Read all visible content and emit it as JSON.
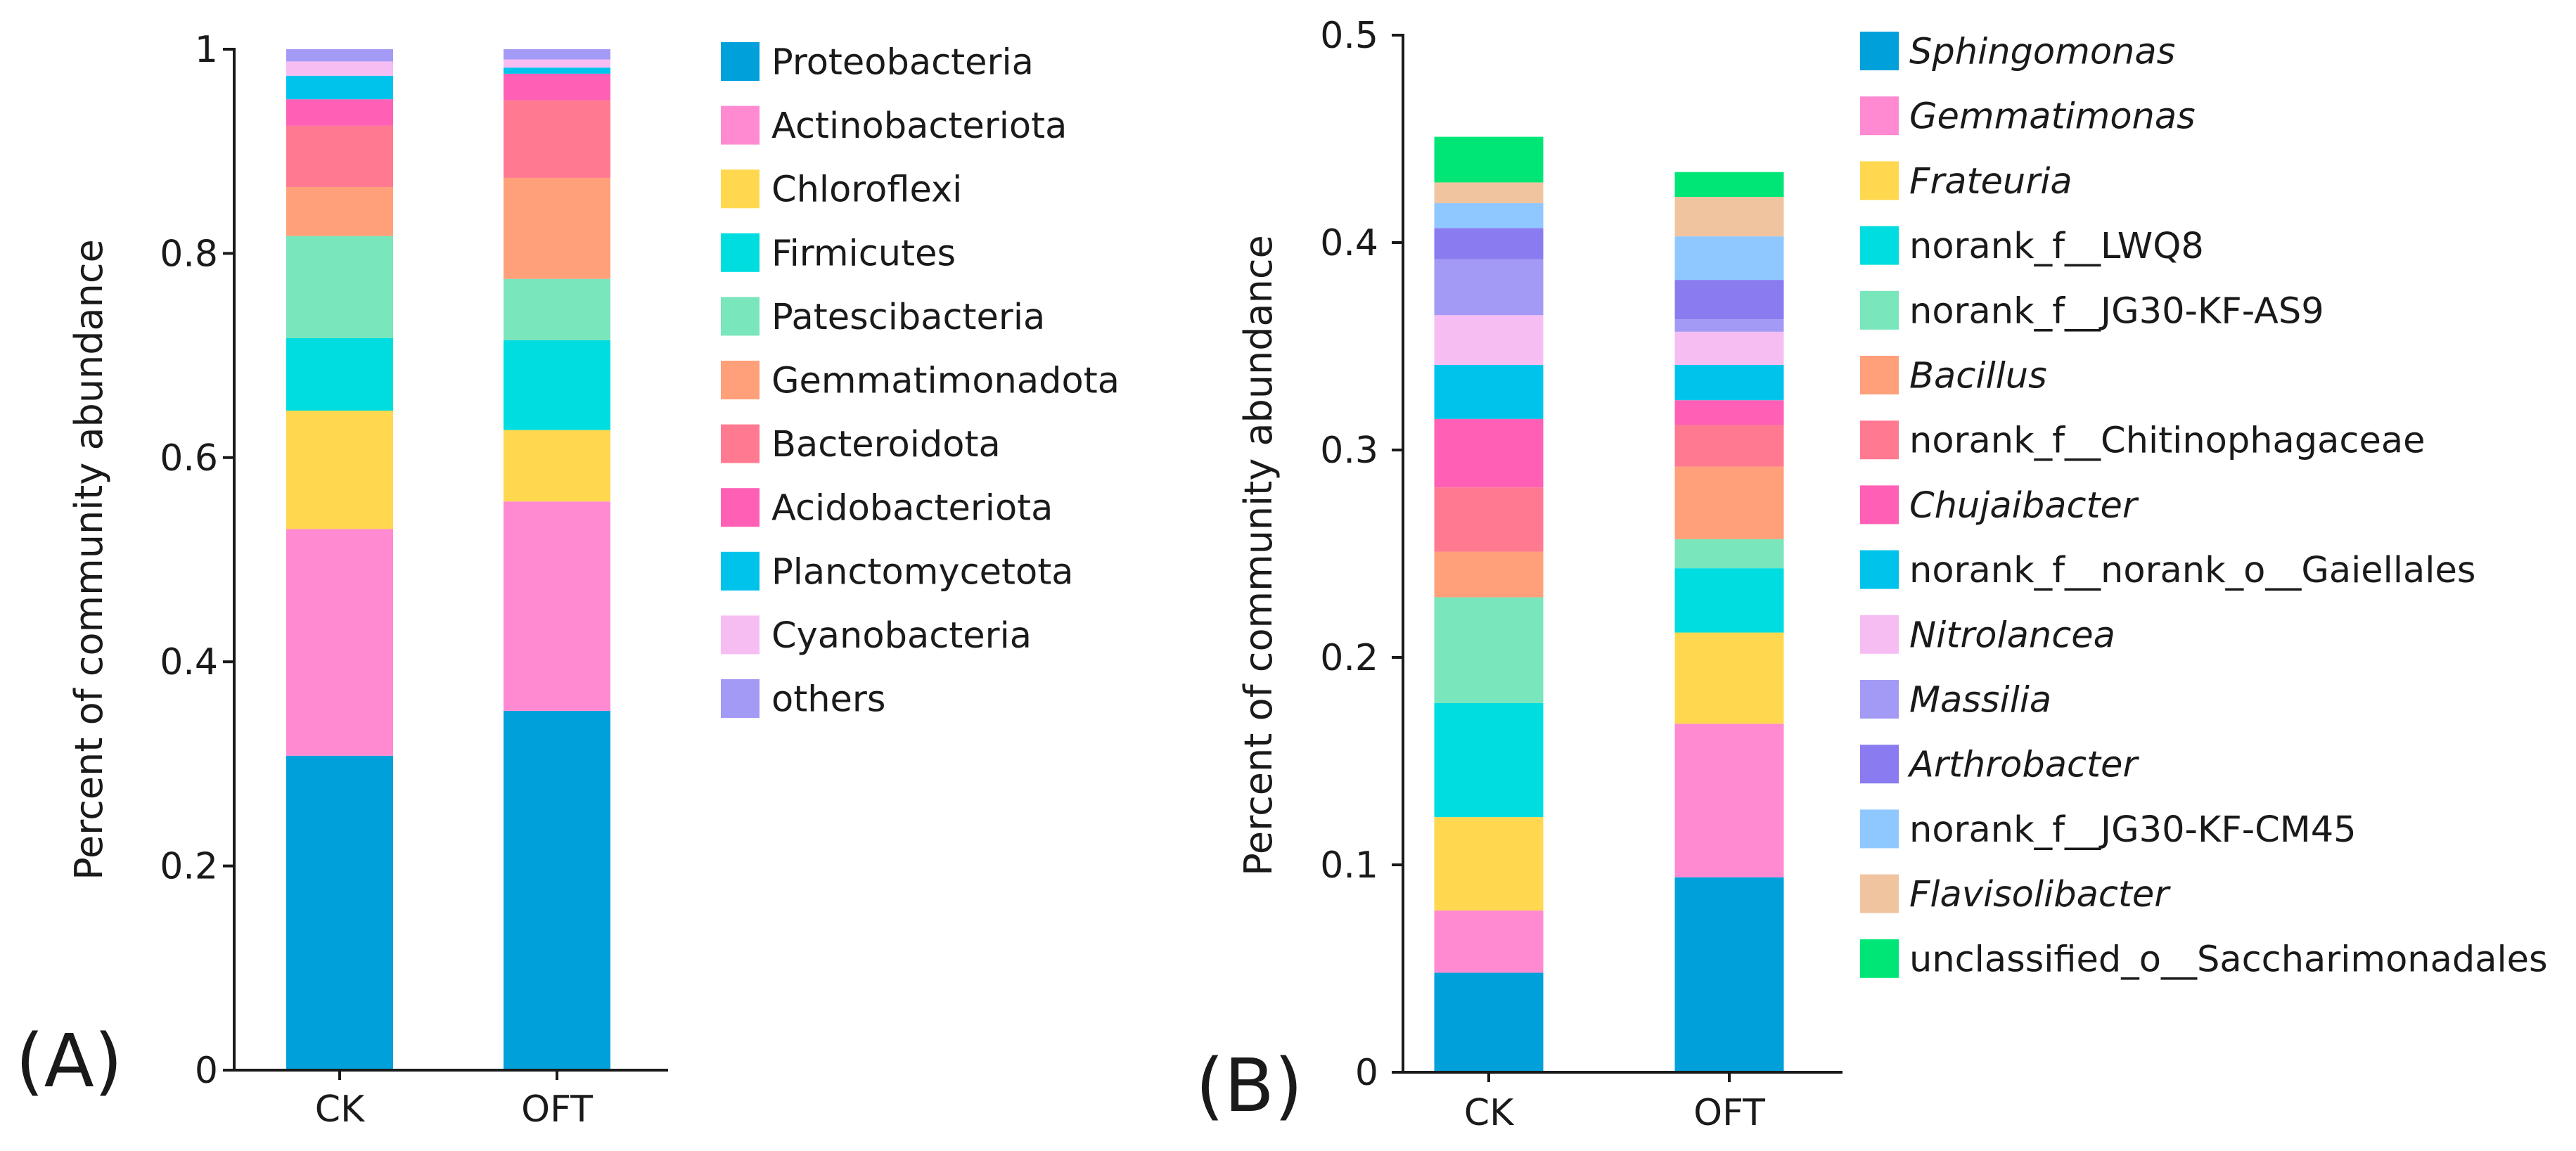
{
  "chart_data": [
    {
      "panel_label": "(A)",
      "type": "bar",
      "stacked": true,
      "ylabel": "Percent of community abundance",
      "ylim": [
        0,
        1
      ],
      "yticks": [
        0,
        0.2,
        0.4,
        0.6,
        0.8,
        1
      ],
      "ytick_labels": [
        "0",
        "0.2",
        "0.4",
        "0.6",
        "0.8",
        "1"
      ],
      "categories": [
        "CK",
        "OFT"
      ],
      "legend_position": "right",
      "series": [
        {
          "name": "Proteobacteria",
          "color": "#00A0DB",
          "italic": false,
          "values": [
            0.308,
            0.352
          ]
        },
        {
          "name": "Actinobacteriota",
          "color": "#FF8AD2",
          "italic": false,
          "values": [
            0.222,
            0.205
          ]
        },
        {
          "name": "Chloroflexi",
          "color": "#FFD84F",
          "italic": false,
          "values": [
            0.116,
            0.07
          ]
        },
        {
          "name": "Firmicutes",
          "color": "#00DDE0",
          "italic": false,
          "values": [
            0.071,
            0.088
          ]
        },
        {
          "name": "Patescibacteria",
          "color": "#79E6BC",
          "italic": false,
          "values": [
            0.1,
            0.06
          ]
        },
        {
          "name": "Gemmatimonadota",
          "color": "#FFA07A",
          "italic": false,
          "values": [
            0.048,
            0.099
          ]
        },
        {
          "name": "Bacteroidota",
          "color": "#FF7A90",
          "italic": false,
          "values": [
            0.06,
            0.076
          ]
        },
        {
          "name": "Acidobacteriota",
          "color": "#FF60B5",
          "italic": false,
          "values": [
            0.026,
            0.026
          ]
        },
        {
          "name": "Planctomycetota",
          "color": "#00C3EB",
          "italic": false,
          "values": [
            0.023,
            0.006
          ]
        },
        {
          "name": "Cyanobacteria",
          "color": "#F6BDF3",
          "italic": false,
          "values": [
            0.014,
            0.008
          ]
        },
        {
          "name": "others",
          "color": "#A39AF5",
          "italic": false,
          "values": [
            0.012,
            0.01
          ]
        }
      ]
    },
    {
      "panel_label": "(B)",
      "type": "bar",
      "stacked": true,
      "ylabel": "Percent of community abundance",
      "ylim": [
        0,
        0.5
      ],
      "yticks": [
        0,
        0.1,
        0.2,
        0.3,
        0.4,
        0.5
      ],
      "ytick_labels": [
        "0",
        "0.1",
        "0.2",
        "0.3",
        "0.4",
        "0.5"
      ],
      "categories": [
        "CK",
        "OFT"
      ],
      "legend_position": "right",
      "series": [
        {
          "name": "Sphingomonas",
          "color": "#00A0DB",
          "italic": true,
          "values": [
            0.048,
            0.094
          ]
        },
        {
          "name": "Gemmatimonas",
          "color": "#FF8AD2",
          "italic": true,
          "values": [
            0.03,
            0.074
          ]
        },
        {
          "name": "Frateuria",
          "color": "#FFD84F",
          "italic": true,
          "values": [
            0.045,
            0.044
          ]
        },
        {
          "name": "norank_f__LWQ8",
          "color": "#00DDE0",
          "italic": false,
          "values": [
            0.055,
            0.031
          ]
        },
        {
          "name": "norank_f__JG30-KF-AS9",
          "color": "#79E6BC",
          "italic": false,
          "values": [
            0.051,
            0.014
          ]
        },
        {
          "name": "Bacillus",
          "color": "#FFA07A",
          "italic": true,
          "values": [
            0.022,
            0.035
          ]
        },
        {
          "name": "norank_f__Chitinophagaceae",
          "color": "#FF7A90",
          "italic": false,
          "values": [
            0.031,
            0.02
          ]
        },
        {
          "name": "Chujaibacter",
          "color": "#FF60B5",
          "italic": true,
          "values": [
            0.033,
            0.012
          ]
        },
        {
          "name": "norank_f__norank_o__Gaiellales",
          "color": "#00C3EB",
          "italic": false,
          "values": [
            0.026,
            0.017
          ]
        },
        {
          "name": "Nitrolancea",
          "color": "#F6BDF3",
          "italic": true,
          "values": [
            0.024,
            0.016
          ]
        },
        {
          "name": "Massilia",
          "color": "#A39AF5",
          "italic": true,
          "values": [
            0.027,
            0.006
          ]
        },
        {
          "name": "Arthrobacter",
          "color": "#8A7BF0",
          "italic": true,
          "values": [
            0.015,
            0.019
          ]
        },
        {
          "name": "norank_f__JG30-KF-CM45",
          "color": "#8EC8FF",
          "italic": false,
          "values": [
            0.012,
            0.021
          ]
        },
        {
          "name": "Flavisolibacter",
          "color": "#F1C4A0",
          "italic": true,
          "values": [
            0.01,
            0.019
          ]
        },
        {
          "name": "unclassified_o__Saccharimonadales",
          "color": "#00E676",
          "italic": false,
          "values": [
            0.022,
            0.012
          ]
        }
      ]
    }
  ]
}
